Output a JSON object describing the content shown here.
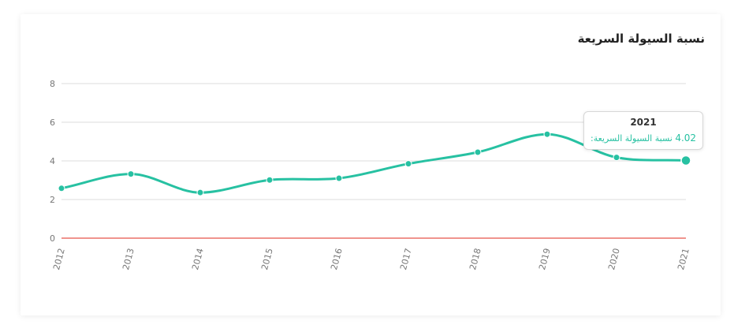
{
  "chart_data": {
    "type": "line",
    "title": "نسبة السيولة السريعة",
    "categories": [
      "2012",
      "2013",
      "2014",
      "2015",
      "2016",
      "2017",
      "2018",
      "2019",
      "2020",
      "2021"
    ],
    "series": [
      {
        "name": "نسبة السيولة السريعة",
        "values": [
          2.58,
          3.32,
          2.36,
          3.01,
          3.1,
          3.85,
          4.45,
          5.38,
          4.18,
          4.02
        ]
      }
    ],
    "y_ticks": [
      "0",
      "2",
      "4",
      "6",
      "8"
    ],
    "ylim": [
      0,
      8
    ],
    "xlabel": "",
    "ylabel": "",
    "grid": true,
    "legend": "none",
    "colors": {
      "line": "#27c1a2",
      "zero_line": "#e8534a",
      "grid": "#dddddd"
    }
  },
  "tooltip": {
    "year": "2021",
    "label": "نسبة السيولة السريعة:",
    "value": "4.02"
  }
}
